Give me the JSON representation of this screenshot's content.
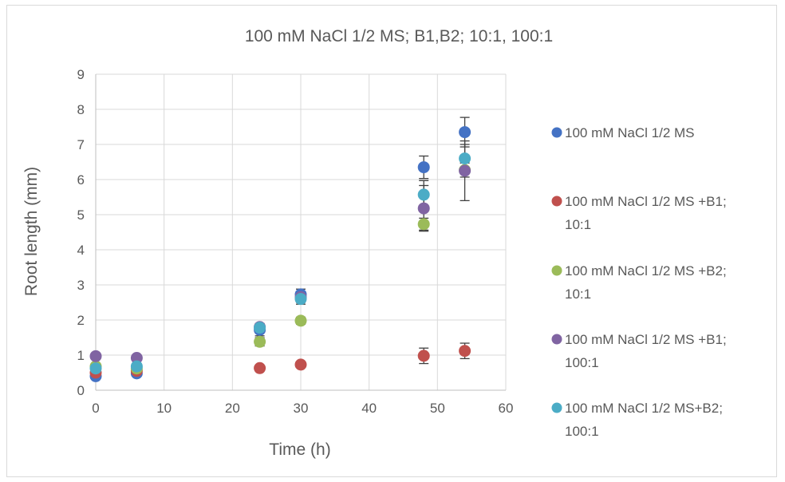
{
  "chart_data": {
    "type": "scatter",
    "title": "100 mM NaCl 1/2 MS; B1,B2; 10:1, 100:1",
    "xlabel": "Time (h)",
    "ylabel": "Root length (mm)",
    "xlim": [
      0,
      60
    ],
    "ylim": [
      0,
      9
    ],
    "x_ticks": [
      0,
      10,
      20,
      30,
      40,
      50,
      60
    ],
    "y_ticks": [
      0,
      1,
      2,
      3,
      4,
      5,
      6,
      7,
      8,
      9
    ],
    "grid": true,
    "legend_position": "right",
    "series": [
      {
        "name": "100 mM NaCl 1/2 MS",
        "color": "#4472C4",
        "points": [
          {
            "x": 0,
            "y": 0.4,
            "err": 0.05
          },
          {
            "x": 6,
            "y": 0.48,
            "err": 0.05
          },
          {
            "x": 24,
            "y": 1.72,
            "err": 0.17
          },
          {
            "x": 30,
            "y": 2.73,
            "err": 0.15
          },
          {
            "x": 48,
            "y": 6.35,
            "err": 0.32
          },
          {
            "x": 54,
            "y": 7.35,
            "err": 0.42
          }
        ]
      },
      {
        "name": "100 mM NaCl 1/2 MS +B1;\n10:1",
        "color": "#C0504D",
        "points": [
          {
            "x": 0,
            "y": 0.5,
            "err": 0.04
          },
          {
            "x": 6,
            "y": 0.55,
            "err": 0.04
          },
          {
            "x": 24,
            "y": 0.63,
            "err": 0.04
          },
          {
            "x": 30,
            "y": 0.73,
            "err": 0.05
          },
          {
            "x": 48,
            "y": 0.98,
            "err": 0.22
          },
          {
            "x": 54,
            "y": 1.12,
            "err": 0.22
          }
        ]
      },
      {
        "name": "100 mM NaCl 1/2 MS +B2;\n10:1",
        "color": "#9BBB59",
        "points": [
          {
            "x": 0,
            "y": 0.68,
            "err": 0.05
          },
          {
            "x": 6,
            "y": 0.62,
            "err": 0.05
          },
          {
            "x": 24,
            "y": 1.38,
            "err": 0.12
          },
          {
            "x": 30,
            "y": 1.98,
            "err": 0.1
          },
          {
            "x": 48,
            "y": 4.73,
            "err": 0.17
          },
          {
            "x": 54,
            "y": 6.27,
            "err": 0.2
          }
        ]
      },
      {
        "name": "100 mM NaCl 1/2 MS +B1;\n100:1",
        "color": "#8064A2",
        "points": [
          {
            "x": 0,
            "y": 0.97,
            "err": 0.05
          },
          {
            "x": 6,
            "y": 0.92,
            "err": 0.05
          },
          {
            "x": 24,
            "y": 1.8,
            "err": 0.1
          },
          {
            "x": 30,
            "y": 2.65,
            "err": 0.15
          },
          {
            "x": 48,
            "y": 5.18,
            "err": 0.65
          },
          {
            "x": 54,
            "y": 6.25,
            "err": 0.85
          }
        ]
      },
      {
        "name": " 100 mM NaCl 1/2 MS+B2;\n100:1",
        "color": "#4BACC6",
        "points": [
          {
            "x": 0,
            "y": 0.62,
            "err": 0.05
          },
          {
            "x": 6,
            "y": 0.68,
            "err": 0.05
          },
          {
            "x": 24,
            "y": 1.78,
            "err": 0.1
          },
          {
            "x": 30,
            "y": 2.6,
            "err": 0.15
          },
          {
            "x": 48,
            "y": 5.57,
            "err": 0.4
          },
          {
            "x": 54,
            "y": 6.6,
            "err": 0.4
          }
        ]
      }
    ]
  }
}
